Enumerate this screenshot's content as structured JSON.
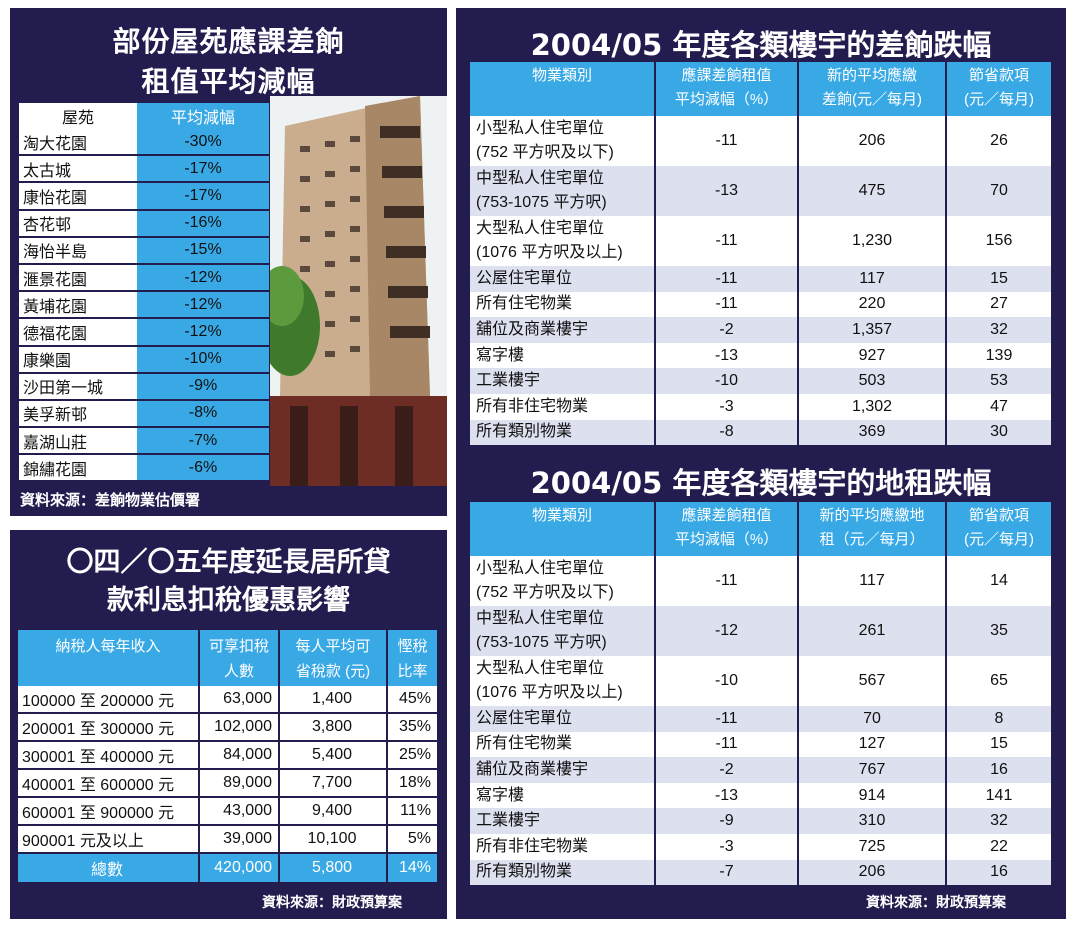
{
  "estates": {
    "title_line1": "部份屋苑應課差餉",
    "title_line2": "租值平均減幅",
    "header": [
      "屋苑",
      "平均減幅"
    ],
    "rows": [
      [
        "淘大花園",
        "-30%"
      ],
      [
        "太古城",
        "-17%"
      ],
      [
        "康怡花園",
        "-17%"
      ],
      [
        "杏花邨",
        "-16%"
      ],
      [
        "海怡半島",
        "-15%"
      ],
      [
        "滙景花園",
        "-12%"
      ],
      [
        "黃埔花園",
        "-12%"
      ],
      [
        "德福花園",
        "-12%"
      ],
      [
        "康樂園",
        "-10%"
      ],
      [
        "沙田第一城",
        "-9%"
      ],
      [
        "美孚新邨",
        "-8%"
      ],
      [
        "嘉湖山莊",
        "-7%"
      ],
      [
        "錦繡花園",
        "-6%"
      ]
    ],
    "source": "資料來源：差餉物業估價署"
  },
  "tax": {
    "title_line1": "〇四／〇五年度延長居所貸",
    "title_line2": "款利息扣稅優惠影響",
    "header": [
      "納稅人每年收入",
      "可享扣稅人數",
      "每人平均可省稅款 (元)",
      "慳稅比率"
    ],
    "header_lines": [
      [
        "納稅人每年收入"
      ],
      [
        "可享扣稅",
        "人數"
      ],
      [
        "每人平均可",
        "省稅款 (元)"
      ],
      [
        "慳稅",
        "比率"
      ]
    ],
    "rows": [
      [
        "100000 至 200000 元",
        "63,000",
        "1,400",
        "45%"
      ],
      [
        "200001 至 300000 元",
        "102,000",
        "3,800",
        "35%"
      ],
      [
        "300001 至 400000 元",
        "84,000",
        "5,400",
        "25%"
      ],
      [
        "400001 至 600000 元",
        "89,000",
        "7,700",
        "18%"
      ],
      [
        "600001 至 900000 元",
        "43,000",
        "9,400",
        "11%"
      ],
      [
        "900001 元及以上",
        "39,000",
        "10,100",
        "5%"
      ]
    ],
    "total": [
      "總數",
      "420,000",
      "5,800",
      "14%"
    ],
    "source": "資料來源：財政預算案"
  },
  "rates": {
    "title": "2004/05 年度各類樓宇的差餉跌幅",
    "header_lines": [
      [
        "物業類別"
      ],
      [
        "應課差餉租值",
        "平均減幅（%）"
      ],
      [
        "新的平均應繳",
        "差餉(元／每月)"
      ],
      [
        "節省款項",
        "(元／每月)"
      ]
    ],
    "rows": [
      [
        [
          "小型私人住宅單位",
          "(752 平方呎及以下)"
        ],
        "-11",
        "206",
        "26"
      ],
      [
        [
          "中型私人住宅單位",
          "(753-1075 平方呎)"
        ],
        "-13",
        "475",
        "70"
      ],
      [
        [
          "大型私人住宅單位",
          "(1076 平方呎及以上)"
        ],
        "-11",
        "1,230",
        "156"
      ],
      [
        [
          "公屋住宅單位"
        ],
        "-11",
        "117",
        "15"
      ],
      [
        [
          "所有住宅物業"
        ],
        "-11",
        "220",
        "27"
      ],
      [
        [
          "舖位及商業樓宇"
        ],
        "-2",
        "1,357",
        "32"
      ],
      [
        [
          "寫字樓"
        ],
        "-13",
        "927",
        "139"
      ],
      [
        [
          "工業樓宇"
        ],
        "-10",
        "503",
        "53"
      ],
      [
        [
          "所有非住宅物業"
        ],
        "-3",
        "1,302",
        "47"
      ],
      [
        [
          "所有類別物業"
        ],
        "-8",
        "369",
        "30"
      ]
    ]
  },
  "ground_rent": {
    "title": "2004/05 年度各類樓宇的地租跌幅",
    "header_lines": [
      [
        "物業類別"
      ],
      [
        "應課差餉租值",
        "平均減幅（%）"
      ],
      [
        "新的平均應繳地",
        "租（元／每月）"
      ],
      [
        "節省款項",
        "(元／每月)"
      ]
    ],
    "rows": [
      [
        [
          "小型私人住宅單位",
          "(752 平方呎及以下)"
        ],
        "-11",
        "117",
        "14"
      ],
      [
        [
          "中型私人住宅單位",
          "(753-1075 平方呎)"
        ],
        "-12",
        "261",
        "35"
      ],
      [
        [
          "大型私人住宅單位",
          "(1076 平方呎及以上)"
        ],
        "-10",
        "567",
        "65"
      ],
      [
        [
          "公屋住宅單位"
        ],
        "-11",
        "70",
        "8"
      ],
      [
        [
          "所有住宅物業"
        ],
        "-11",
        "127",
        "15"
      ],
      [
        [
          "舖位及商業樓宇"
        ],
        "-2",
        "767",
        "16"
      ],
      [
        [
          "寫字樓"
        ],
        "-13",
        "914",
        "141"
      ],
      [
        [
          "工業樓宇"
        ],
        "-9",
        "310",
        "32"
      ],
      [
        [
          "所有非住宅物業"
        ],
        "-3",
        "725",
        "22"
      ],
      [
        [
          "所有類別物業"
        ],
        "-7",
        "206",
        "16"
      ]
    ],
    "source": "資料來源：財政預算案"
  },
  "colors": {
    "navy": "#221c4f",
    "cyan": "#39a9e6",
    "lavender": "#dde0ef"
  }
}
